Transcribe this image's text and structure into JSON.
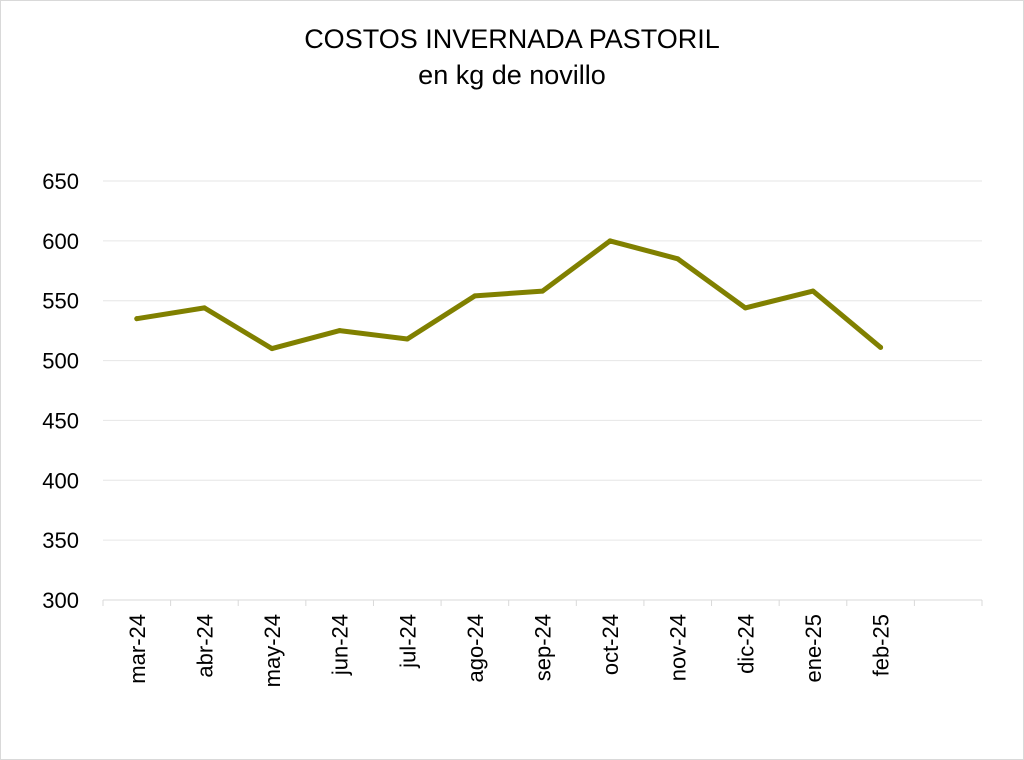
{
  "chart_data": {
    "type": "line",
    "title": "COSTOS INVERNADA PASTORIL",
    "subtitle": "en kg de novillo",
    "xlabel": "",
    "ylabel": "",
    "categories": [
      "mar-24",
      "abr-24",
      "may-24",
      "jun-24",
      "jul-24",
      "ago-24",
      "sep-24",
      "oct-24",
      "nov-24",
      "dic-24",
      "ene-25",
      "feb-25"
    ],
    "series": [
      {
        "values": [
          535,
          544,
          510,
          525,
          518,
          554,
          558,
          600,
          585,
          544,
          558,
          511
        ],
        "color": "#808000"
      }
    ],
    "ylim": [
      300,
      650
    ],
    "yticks": [
      300,
      350,
      400,
      450,
      500,
      550,
      600,
      650
    ],
    "grid": true,
    "legend": "none"
  }
}
